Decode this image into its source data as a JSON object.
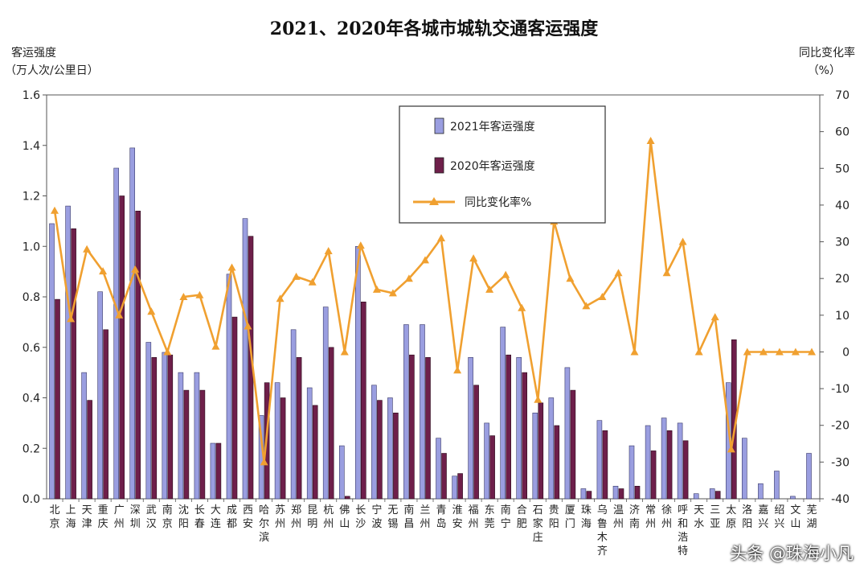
{
  "watermark": "头条 @珠海小凡",
  "chart_data": {
    "type": "bar",
    "title": "2021、2020年各城市城轨交通客运强度",
    "ylabel_left": [
      "客运强度",
      "（万人次/公里日）"
    ],
    "ylabel_right": [
      "同比变化率",
      "（%）"
    ],
    "ylim": [
      0,
      1.6
    ],
    "yticks": [
      "0.0",
      "0.2",
      "0.4",
      "0.6",
      "0.8",
      "1.0",
      "1.2",
      "1.4",
      "1.6"
    ],
    "y2lim": [
      -40,
      70
    ],
    "y2ticks": [
      "-40",
      "-30",
      "-20",
      "-10",
      "0",
      "10",
      "20",
      "30",
      "40",
      "50",
      "60",
      "70"
    ],
    "categories": [
      "北京",
      "上海",
      "天津",
      "重庆",
      "广州",
      "深圳",
      "武汉",
      "南京",
      "沈阳",
      "长春",
      "大连",
      "成都",
      "西安",
      "哈尔滨",
      "苏州",
      "郑州",
      "昆明",
      "杭州",
      "佛山",
      "长沙",
      "宁波",
      "无锡",
      "南昌",
      "兰州",
      "青岛",
      "淮安",
      "福州",
      "东莞",
      "南宁",
      "合肥",
      "石家庄",
      "贵阳",
      "厦门",
      "珠海",
      "乌鲁木齐",
      "温州",
      "济南",
      "常州",
      "徐州",
      "呼和浩特",
      "天水",
      "三亚",
      "太原",
      "洛阳",
      "嘉兴",
      "绍兴",
      "文山",
      "芜湖"
    ],
    "series": [
      {
        "name": "2021年客运强度",
        "color": "#9a9ee0",
        "values": [
          1.09,
          1.16,
          0.5,
          0.82,
          1.31,
          1.39,
          0.62,
          0.58,
          0.5,
          0.5,
          0.22,
          0.89,
          1.11,
          0.33,
          0.46,
          0.67,
          0.44,
          0.76,
          0.21,
          1.0,
          0.45,
          0.4,
          0.69,
          0.69,
          0.24,
          0.09,
          0.56,
          0.3,
          0.68,
          0.56,
          0.34,
          0.4,
          0.52,
          0.04,
          0.31,
          0.05,
          0.21,
          0.29,
          0.32,
          0.3,
          0.02,
          0.04,
          0.46,
          0.24,
          0.06,
          0.11,
          0.01,
          0.18
        ]
      },
      {
        "name": "2020年客运强度",
        "color": "#6e1f4a",
        "values": [
          0.79,
          1.07,
          0.39,
          0.67,
          1.2,
          1.14,
          0.56,
          0.57,
          0.43,
          0.43,
          0.22,
          0.72,
          1.04,
          0.46,
          0.4,
          0.56,
          0.37,
          0.6,
          0.01,
          0.78,
          0.39,
          0.34,
          0.57,
          0.56,
          0.18,
          0.1,
          0.45,
          0.25,
          0.57,
          0.5,
          0.38,
          0.29,
          0.43,
          0.03,
          0.27,
          0.04,
          0.05,
          0.19,
          0.27,
          0.23,
          0.0,
          0.03,
          0.63,
          0.0,
          0.0,
          0.0,
          0.0,
          0.0
        ]
      },
      {
        "name": "同比变化率%",
        "color": "#f0a030",
        "values": [
          38.5,
          9,
          28,
          22,
          10,
          22.5,
          11,
          0,
          15,
          15.5,
          1.5,
          23,
          7,
          -30,
          14.5,
          20.5,
          19,
          27.5,
          0,
          29,
          17,
          16,
          20,
          25,
          31,
          -5,
          25.5,
          17,
          21,
          12,
          -13,
          35.5,
          20,
          12.5,
          15,
          21.5,
          0,
          57.5,
          21.5,
          30,
          0,
          9.5,
          -26.5,
          0,
          0,
          0,
          0,
          0
        ]
      }
    ],
    "legend_position": "top-center",
    "grid": false
  }
}
